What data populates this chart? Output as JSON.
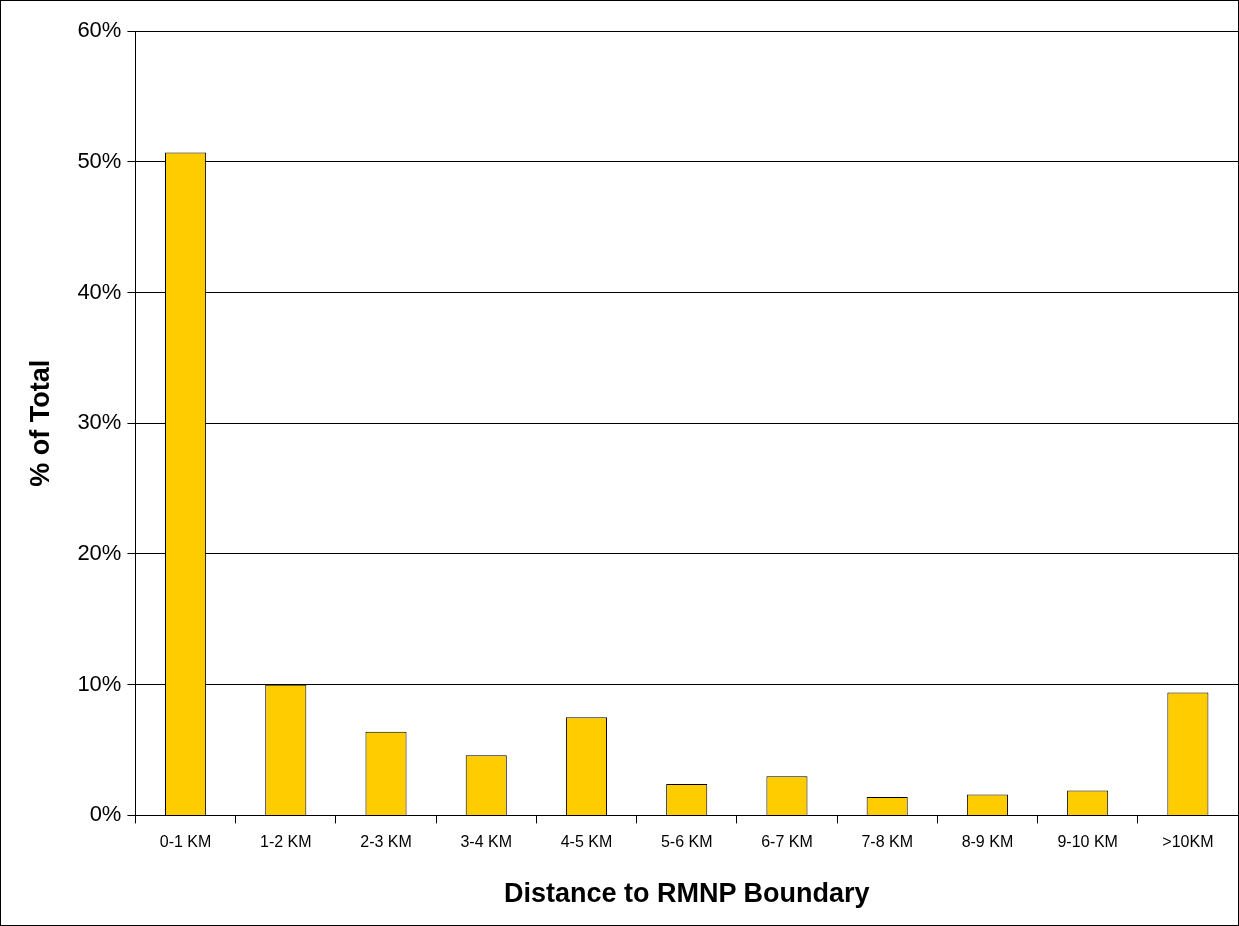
{
  "chart_data": {
    "type": "bar",
    "xlabel": "Distance to RMNP Boundary",
    "ylabel": "% of Total",
    "categories": [
      "0-1 KM",
      "1-2 KM",
      "2-3 KM",
      "3-4 KM",
      "4-5 KM",
      "5-6 KM",
      "6-7 KM",
      "7-8 KM",
      "8-9 KM",
      "9-10 KM",
      ">10KM"
    ],
    "values": [
      50.7,
      10.0,
      6.4,
      4.6,
      7.5,
      2.4,
      3.0,
      1.4,
      1.6,
      1.9,
      9.4
    ],
    "color": "#ffcc00",
    "ylim": [
      0,
      60
    ],
    "yticks": [
      {
        "value": 0,
        "label": "0%"
      },
      {
        "value": 10,
        "label": "10%"
      },
      {
        "value": 20,
        "label": "20%"
      },
      {
        "value": 30,
        "label": "30%"
      },
      {
        "value": 40,
        "label": "40%"
      },
      {
        "value": 50,
        "label": "50%"
      },
      {
        "value": 60,
        "label": "60%"
      }
    ],
    "grid": "y",
    "legend": false
  }
}
